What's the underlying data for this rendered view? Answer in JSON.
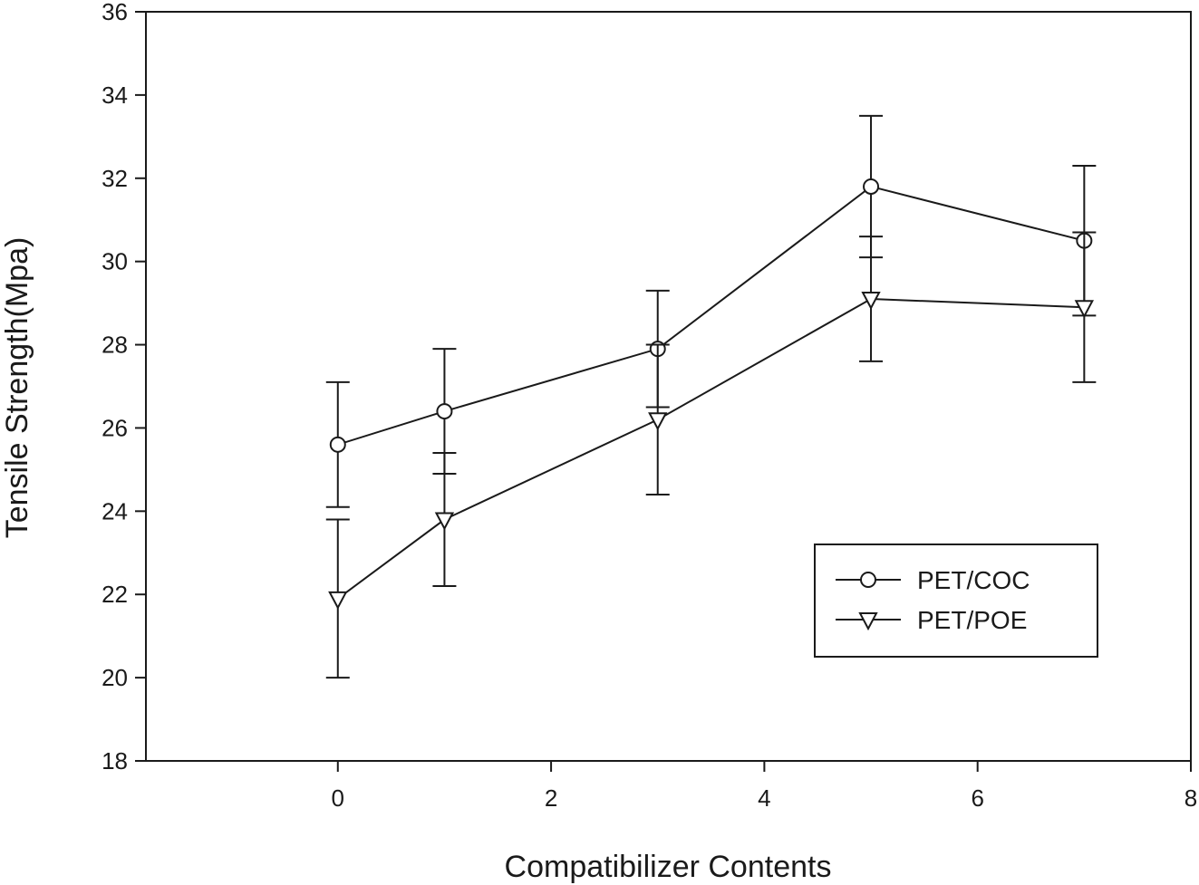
{
  "chart_data": {
    "type": "line",
    "xlabel": "Compatibilizer Contents",
    "ylabel": "Tensile Strength(Mpa)",
    "xlim": [
      -1.8,
      8
    ],
    "ylim": [
      18,
      36
    ],
    "xticks": [
      0,
      2,
      4,
      6,
      8
    ],
    "yticks": [
      18,
      20,
      22,
      24,
      26,
      28,
      30,
      32,
      34,
      36
    ],
    "legend_position": "lower-right",
    "series": [
      {
        "name": "PET/COC",
        "marker": "circle",
        "x": [
          0,
          1,
          3,
          5,
          7
        ],
        "y": [
          25.6,
          26.4,
          27.9,
          31.8,
          30.5
        ],
        "error": [
          1.5,
          1.5,
          1.4,
          1.7,
          1.8
        ]
      },
      {
        "name": "PET/POE",
        "marker": "triangle-down",
        "x": [
          0,
          1,
          3,
          5,
          7
        ],
        "y": [
          21.9,
          23.8,
          26.2,
          29.1,
          28.9
        ],
        "error": [
          1.9,
          1.6,
          1.8,
          1.5,
          1.8
        ]
      }
    ]
  }
}
